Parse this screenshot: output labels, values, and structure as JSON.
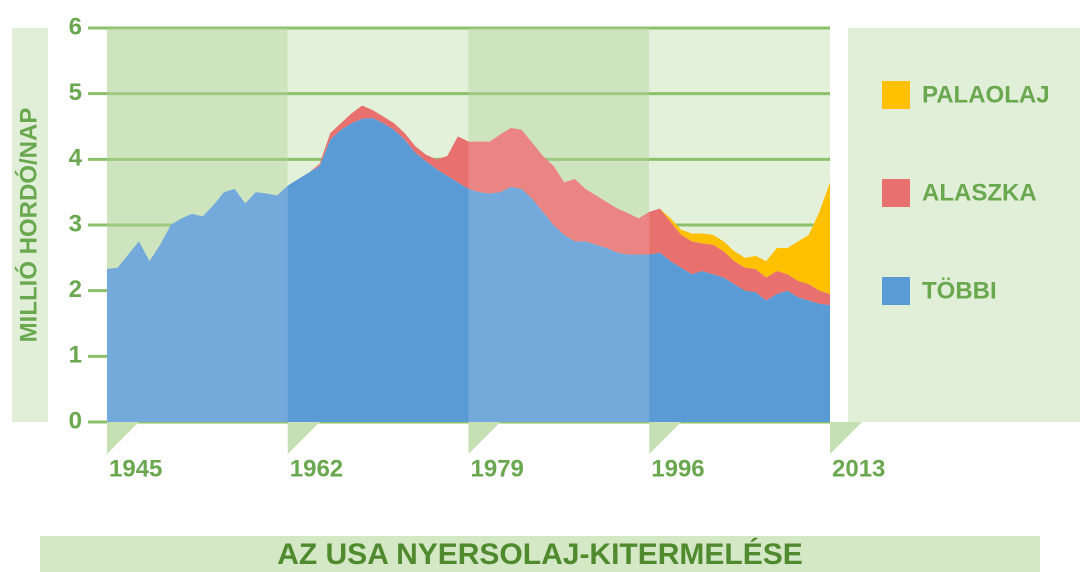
{
  "chart_data": {
    "type": "area",
    "title": "AZ USA NYERSOLAJ-KITERMELÉSE",
    "ylabel": "MILLIÓ HORDÓ/NAP",
    "x": [
      1945,
      1946,
      1947,
      1948,
      1949,
      1950,
      1951,
      1952,
      1953,
      1954,
      1955,
      1956,
      1957,
      1958,
      1959,
      1960,
      1961,
      1962,
      1963,
      1964,
      1965,
      1966,
      1967,
      1968,
      1969,
      1970,
      1971,
      1972,
      1973,
      1974,
      1975,
      1976,
      1977,
      1978,
      1979,
      1980,
      1981,
      1982,
      1983,
      1984,
      1985,
      1986,
      1987,
      1988,
      1989,
      1990,
      1991,
      1992,
      1993,
      1994,
      1995,
      1996,
      1997,
      1998,
      1999,
      2000,
      2001,
      2002,
      2003,
      2004,
      2005,
      2006,
      2007,
      2008,
      2009,
      2010,
      2011,
      2012,
      2013
    ],
    "series": [
      {
        "name": "TÖBBI",
        "color": "#5b9bd5",
        "values": [
          2.33,
          2.35,
          2.55,
          2.75,
          2.45,
          2.7,
          3.0,
          3.1,
          3.17,
          3.13,
          3.3,
          3.5,
          3.55,
          3.33,
          3.5,
          3.48,
          3.45,
          3.6,
          3.7,
          3.8,
          3.9,
          4.3,
          4.45,
          4.55,
          4.62,
          4.63,
          4.55,
          4.45,
          4.3,
          4.1,
          3.97,
          3.85,
          3.75,
          3.65,
          3.55,
          3.5,
          3.48,
          3.5,
          3.58,
          3.55,
          3.4,
          3.2,
          3.0,
          2.85,
          2.75,
          2.75,
          2.7,
          2.65,
          2.58,
          2.55,
          2.55,
          2.55,
          2.58,
          2.45,
          2.35,
          2.25,
          2.3,
          2.25,
          2.2,
          2.1,
          2.0,
          1.98,
          1.85,
          1.95,
          2.0,
          1.9,
          1.85,
          1.8,
          1.78
        ]
      },
      {
        "name": "ALASZKA",
        "color": "#e8706f",
        "values": [
          0,
          0,
          0,
          0,
          0,
          0,
          0,
          0,
          0,
          0,
          0,
          0,
          0,
          0,
          0,
          0,
          0,
          0,
          0,
          0,
          0.03,
          0.1,
          0.1,
          0.15,
          0.2,
          0.12,
          0.1,
          0.1,
          0.1,
          0.1,
          0.1,
          0.15,
          0.3,
          0.7,
          0.72,
          0.77,
          0.79,
          0.88,
          0.9,
          0.9,
          0.85,
          0.85,
          0.9,
          0.8,
          0.95,
          0.8,
          0.75,
          0.7,
          0.67,
          0.63,
          0.55,
          0.65,
          0.67,
          0.6,
          0.5,
          0.5,
          0.42,
          0.45,
          0.4,
          0.35,
          0.35,
          0.35,
          0.35,
          0.35,
          0.25,
          0.25,
          0.25,
          0.2,
          0.17
        ]
      },
      {
        "name": "PALAOLAJ",
        "color": "#ffc000",
        "values": [
          0,
          0,
          0,
          0,
          0,
          0,
          0,
          0,
          0,
          0,
          0,
          0,
          0,
          0,
          0,
          0,
          0,
          0,
          0,
          0,
          0,
          0,
          0,
          0,
          0,
          0,
          0,
          0,
          0,
          0,
          0,
          0,
          0,
          0,
          0,
          0,
          0,
          0,
          0,
          0,
          0,
          0,
          0,
          0,
          0,
          0,
          0,
          0,
          0,
          0,
          0,
          0,
          0,
          0.05,
          0.08,
          0.12,
          0.15,
          0.15,
          0.15,
          0.15,
          0.15,
          0.2,
          0.25,
          0.35,
          0.4,
          0.6,
          0.75,
          1.2,
          1.7
        ]
      }
    ],
    "xlim": [
      1945,
      2013
    ],
    "xticks": [
      1945,
      1962,
      1979,
      1996,
      2013
    ],
    "ylim": [
      0,
      6
    ],
    "yticks": [
      0,
      1,
      2,
      3,
      4,
      5,
      6
    ],
    "grid": true,
    "stacked": true,
    "legend": "right"
  }
}
